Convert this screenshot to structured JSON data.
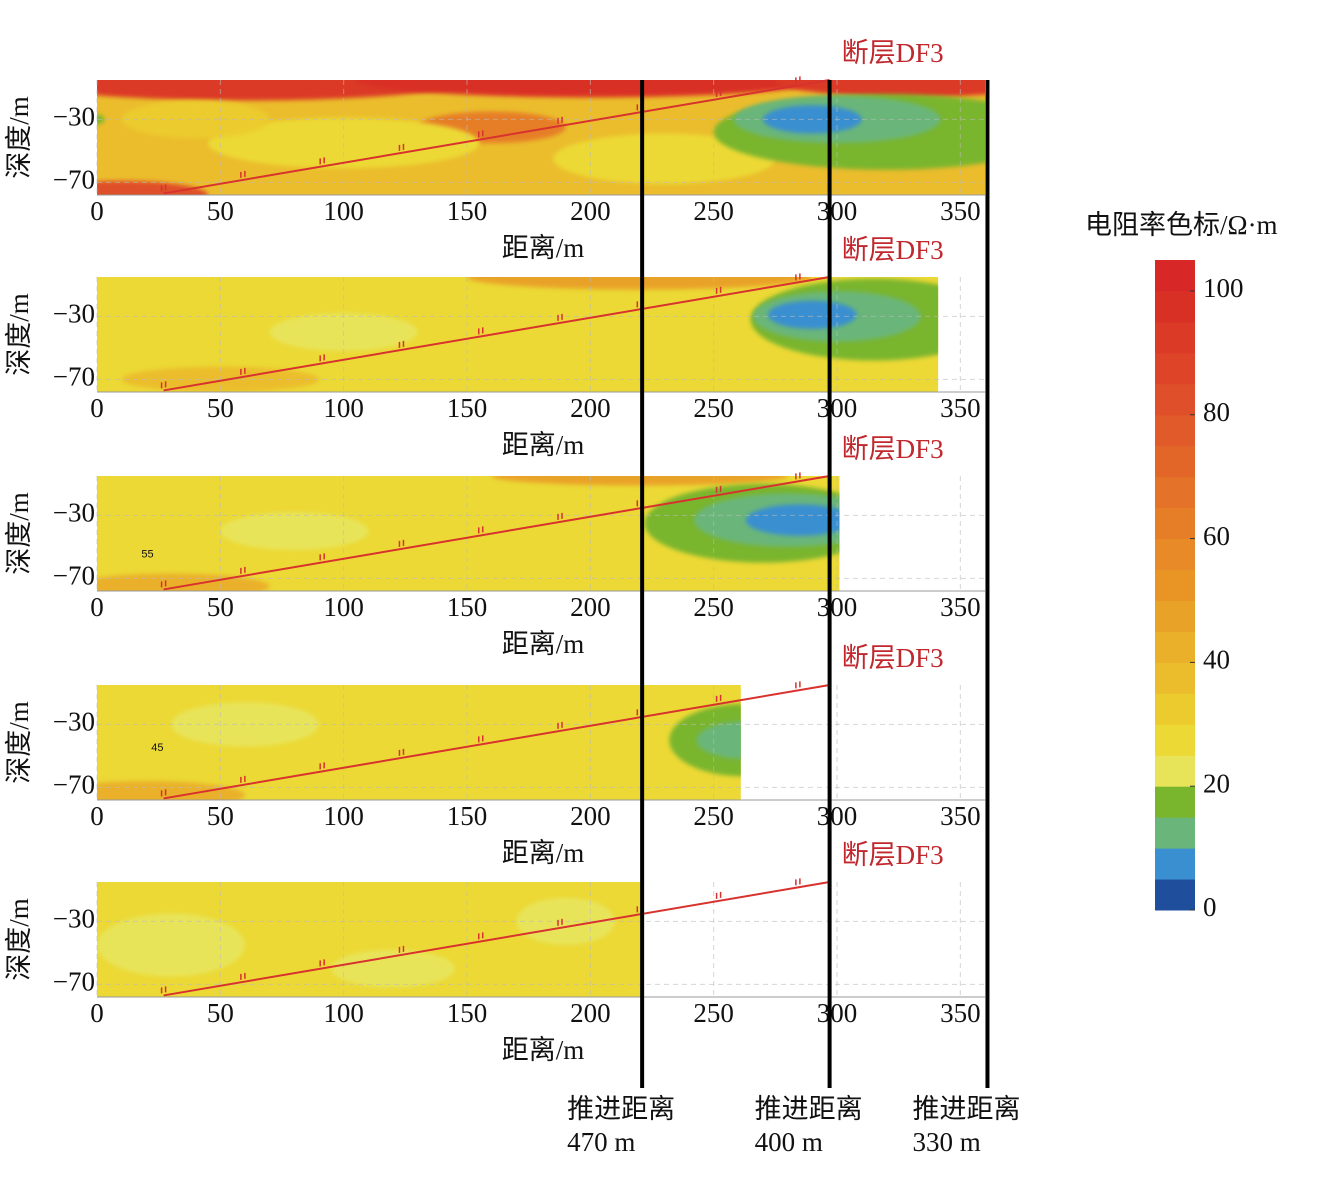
{
  "chart_data": [
    {
      "type": "contour",
      "xlabel": "距离/m",
      "ylabel": "深度/m",
      "xlim": [
        0,
        360
      ],
      "xticks": [
        0,
        50,
        100,
        150,
        200,
        250,
        300,
        350
      ],
      "ylim": [
        -78,
        -5
      ],
      "yticks": [
        {
          "value": -30,
          "label": "−30"
        },
        {
          "value": -70,
          "label": "−70"
        }
      ],
      "grid": true,
      "extent": 360,
      "fault": {
        "label": "断层DF3",
        "x": [
          27,
          297
        ],
        "y": [
          -77,
          -5
        ]
      }
    },
    {
      "type": "contour",
      "xlabel": "距离/m",
      "ylabel": "深度/m",
      "xlim": [
        0,
        360
      ],
      "xticks": [
        0,
        50,
        100,
        150,
        200,
        250,
        300,
        350
      ],
      "ylim": [
        -78,
        -5
      ],
      "yticks": [
        {
          "value": -30,
          "label": "−30"
        },
        {
          "value": -70,
          "label": "−70"
        }
      ],
      "grid": true,
      "extent": 341,
      "fault": {
        "label": "断层DF3",
        "x": [
          27,
          297
        ],
        "y": [
          -77,
          -5
        ]
      }
    },
    {
      "type": "contour",
      "xlabel": "距离/m",
      "ylabel": "深度/m",
      "xlim": [
        0,
        360
      ],
      "xticks": [
        0,
        50,
        100,
        150,
        200,
        250,
        300,
        350
      ],
      "ylim": [
        -78,
        -5
      ],
      "yticks": [
        {
          "value": -30,
          "label": "−30"
        },
        {
          "value": -70,
          "label": "−70"
        }
      ],
      "grid": true,
      "extent": 301,
      "fault": {
        "label": "断层DF3",
        "x": [
          27,
          297
        ],
        "y": [
          -77,
          -5
        ]
      },
      "annotations": [
        {
          "text": "55",
          "x": 18,
          "y": -55
        }
      ]
    },
    {
      "type": "contour",
      "xlabel": "距离/m",
      "ylabel": "深度/m",
      "xlim": [
        0,
        360
      ],
      "xticks": [
        0,
        50,
        100,
        150,
        200,
        250,
        300,
        350
      ],
      "ylim": [
        -78,
        -5
      ],
      "yticks": [
        {
          "value": -30,
          "label": "−30"
        },
        {
          "value": -70,
          "label": "−70"
        }
      ],
      "grid": true,
      "extent": 261,
      "fault": {
        "label": "断层DF3",
        "x": [
          27,
          297
        ],
        "y": [
          -77,
          -5
        ]
      },
      "annotations": [
        {
          "text": "45",
          "x": 22,
          "y": -45
        }
      ]
    },
    {
      "type": "contour",
      "xlabel": "距离/m",
      "ylabel": "深度/m",
      "xlim": [
        0,
        360
      ],
      "xticks": [
        0,
        50,
        100,
        150,
        200,
        250,
        300,
        350
      ],
      "ylim": [
        -78,
        -5
      ],
      "yticks": [
        {
          "value": -30,
          "label": "−30"
        },
        {
          "value": -70,
          "label": "−70"
        }
      ],
      "grid": true,
      "extent": 221,
      "fault": {
        "label": "断层DF3",
        "x": [
          27,
          297
        ],
        "y": [
          -77,
          -5
        ]
      }
    }
  ],
  "advance_lines": [
    {
      "x": 221,
      "label": "推进距离",
      "distance": "470 m"
    },
    {
      "x": 297,
      "label": "推进距离",
      "distance": "400 m"
    },
    {
      "x": 361,
      "label": "推进距离",
      "distance": "330 m"
    }
  ],
  "colorbar": {
    "title": "电阻率色标/Ω·m",
    "levels": [
      0,
      5,
      10,
      15,
      20,
      25,
      30,
      35,
      40,
      45,
      50,
      55,
      60,
      65,
      70,
      75,
      80,
      85,
      90,
      95,
      100,
      105
    ],
    "colors": [
      "#1f4e9c",
      "#3a8fd0",
      "#6ab67a",
      "#7ab52e",
      "#e8e45a",
      "#ecd935",
      "#eccb2e",
      "#ebbd2c",
      "#eab02a",
      "#e9a228",
      "#e89526",
      "#e78a27",
      "#e67e27",
      "#e47228",
      "#e36629",
      "#e15a29",
      "#df4f29",
      "#dd4428",
      "#db3a27",
      "#d93026",
      "#d72726"
    ],
    "ticks": [
      0,
      20,
      40,
      60,
      80,
      100
    ]
  }
}
